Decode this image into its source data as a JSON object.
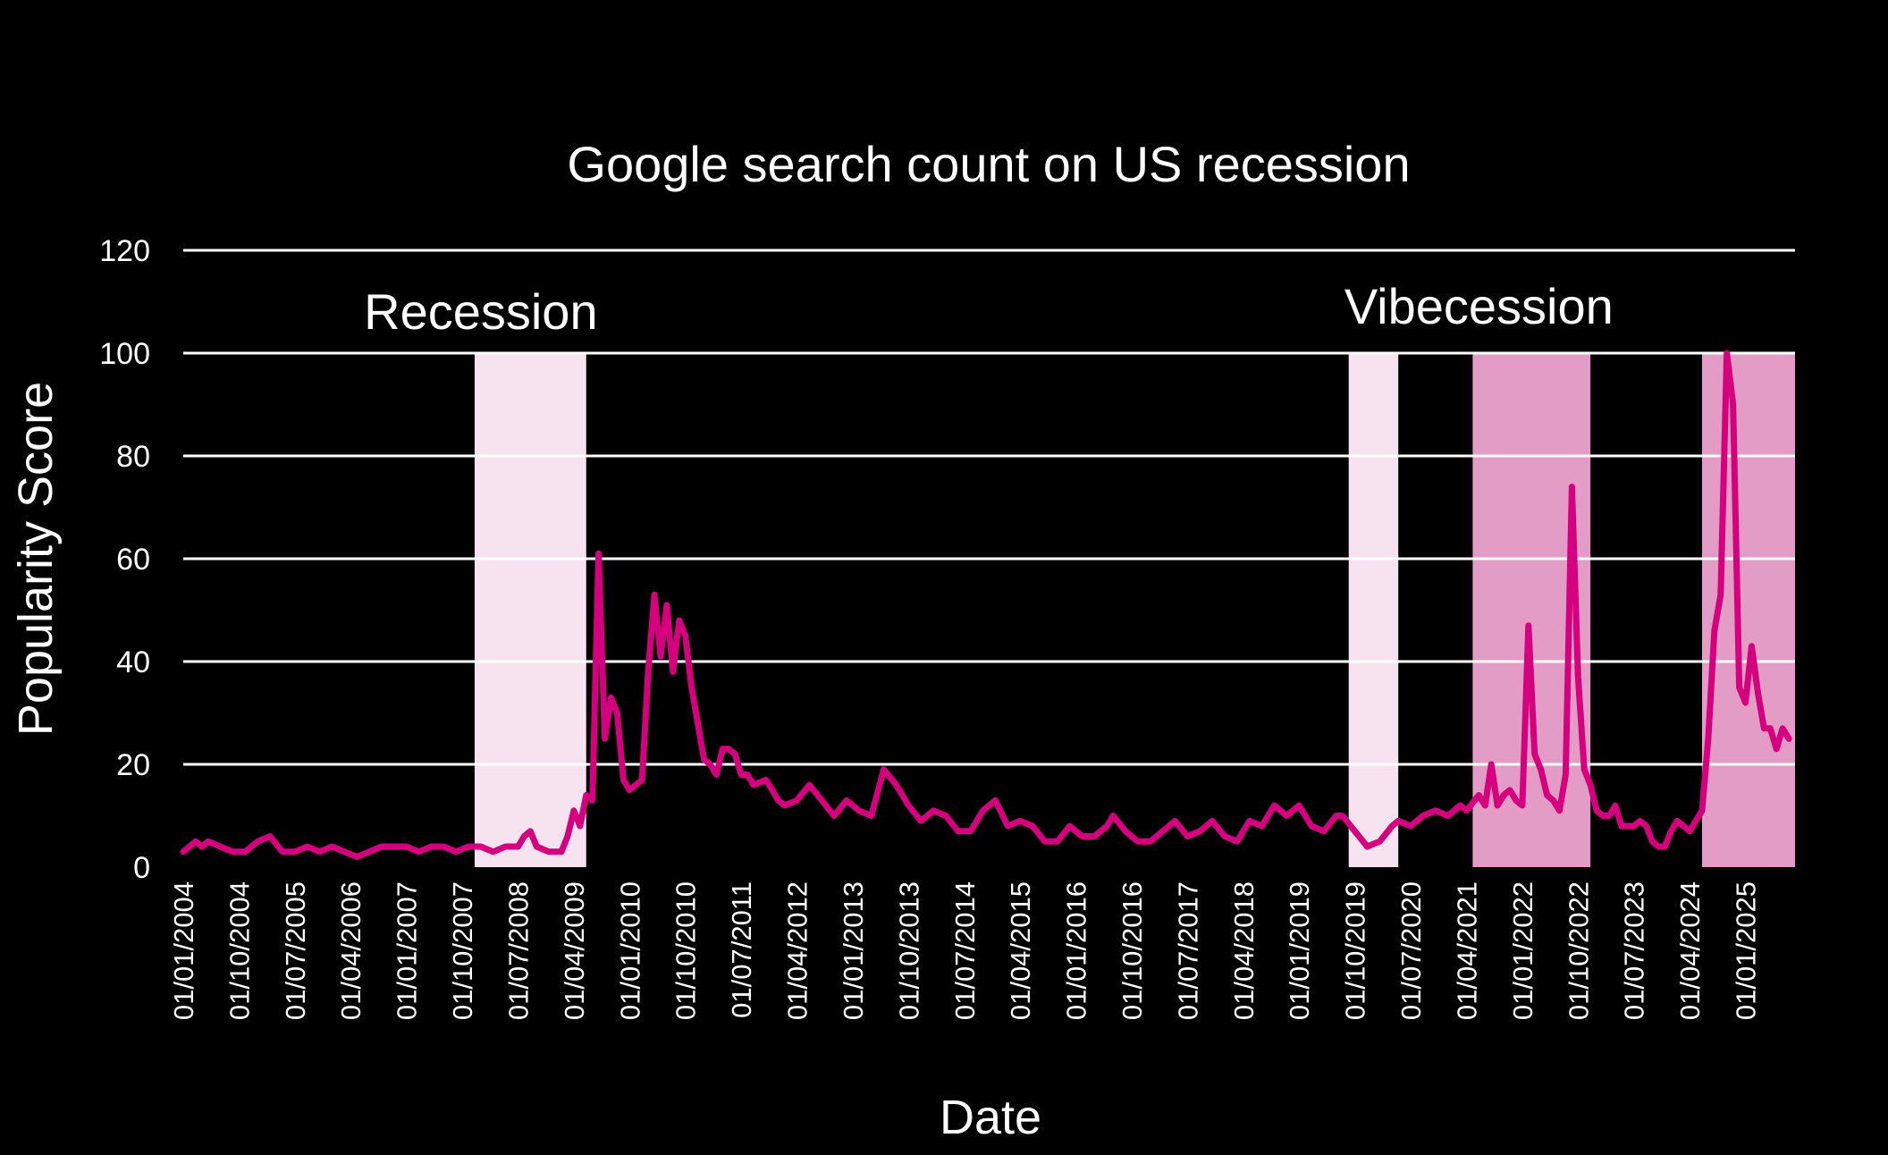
{
  "chart_data": {
    "type": "line",
    "title": "Google search count on US recession",
    "xlabel": "Date",
    "ylabel": "Popularity Score",
    "ylim": [
      0,
      120
    ],
    "yticks": [
      "0",
      "20",
      "40",
      "60",
      "80",
      "100",
      "120"
    ],
    "xrange": [
      "2004-01",
      "2025-09"
    ],
    "xtick_labels": [
      "01/01/2004",
      "01/10/2004",
      "01/07/2005",
      "01/04/2006",
      "01/01/2007",
      "01/10/2007",
      "01/07/2008",
      "01/04/2009",
      "01/01/2010",
      "01/10/2010",
      "01/07/2011",
      "01/04/2012",
      "01/01/2013",
      "01/10/2013",
      "01/07/2014",
      "01/04/2015",
      "01/01/2016",
      "01/10/2016",
      "01/07/2017",
      "01/04/2018",
      "01/01/2019",
      "01/10/2019",
      "01/07/2020",
      "01/04/2021",
      "01/01/2022",
      "01/10/2022",
      "01/07/2023",
      "01/04/2024",
      "01/01/2025"
    ],
    "grid": true,
    "colors": {
      "line": "#d4007d",
      "band_light": "#f6e3ef",
      "band_dark": "#e29cc6",
      "background": "#000000",
      "text": "#ffffff"
    },
    "annotations": [
      {
        "text": "Recession",
        "x": "2008-01"
      },
      {
        "text": "Vibecession",
        "x": "2021-06"
      }
    ],
    "bands": [
      {
        "start": "2007-12",
        "end": "2009-06",
        "style": "light"
      },
      {
        "start": "2019-09",
        "end": "2020-05",
        "style": "light"
      },
      {
        "start": "2021-05",
        "end": "2022-12",
        "style": "dark"
      },
      {
        "start": "2024-06",
        "end": "2025-09",
        "style": "dark"
      }
    ],
    "series": [
      {
        "points": [
          [
            "2004-01",
            3
          ],
          [
            "2004-03",
            5
          ],
          [
            "2004-04",
            4
          ],
          [
            "2004-05",
            5
          ],
          [
            "2004-07",
            4
          ],
          [
            "2004-09",
            3
          ],
          [
            "2004-11",
            3
          ],
          [
            "2005-01",
            5
          ],
          [
            "2005-03",
            6
          ],
          [
            "2005-05",
            3
          ],
          [
            "2005-07",
            3
          ],
          [
            "2005-09",
            4
          ],
          [
            "2005-11",
            3
          ],
          [
            "2006-01",
            4
          ],
          [
            "2006-03",
            3
          ],
          [
            "2006-05",
            2
          ],
          [
            "2006-07",
            3
          ],
          [
            "2006-09",
            4
          ],
          [
            "2006-11",
            4
          ],
          [
            "2007-01",
            4
          ],
          [
            "2007-03",
            3
          ],
          [
            "2007-05",
            4
          ],
          [
            "2007-07",
            4
          ],
          [
            "2007-09",
            3
          ],
          [
            "2007-11",
            4
          ],
          [
            "2008-01",
            4
          ],
          [
            "2008-03",
            3
          ],
          [
            "2008-05",
            4
          ],
          [
            "2008-07",
            4
          ],
          [
            "2008-08",
            6
          ],
          [
            "2008-09",
            7
          ],
          [
            "2008-10",
            4
          ],
          [
            "2008-12",
            3
          ],
          [
            "2009-02",
            3
          ],
          [
            "2009-03",
            6
          ],
          [
            "2009-04",
            11
          ],
          [
            "2009-05",
            8
          ],
          [
            "2009-06",
            14
          ],
          [
            "2009-07",
            13
          ],
          [
            "2009-08",
            61
          ],
          [
            "2009-09",
            25
          ],
          [
            "2009-10",
            33
          ],
          [
            "2009-11",
            30
          ],
          [
            "2009-12",
            17
          ],
          [
            "2010-01",
            15
          ],
          [
            "2010-03",
            17
          ],
          [
            "2010-04",
            38
          ],
          [
            "2010-05",
            53
          ],
          [
            "2010-06",
            41
          ],
          [
            "2010-07",
            51
          ],
          [
            "2010-08",
            38
          ],
          [
            "2010-09",
            48
          ],
          [
            "2010-10",
            45
          ],
          [
            "2010-11",
            35
          ],
          [
            "2010-12",
            28
          ],
          [
            "2011-01",
            21
          ],
          [
            "2011-02",
            20
          ],
          [
            "2011-03",
            18
          ],
          [
            "2011-04",
            23
          ],
          [
            "2011-05",
            23
          ],
          [
            "2011-06",
            22
          ],
          [
            "2011-07",
            18
          ],
          [
            "2011-08",
            18
          ],
          [
            "2011-09",
            16
          ],
          [
            "2011-11",
            17
          ],
          [
            "2012-01",
            13
          ],
          [
            "2012-02",
            12
          ],
          [
            "2012-04",
            13
          ],
          [
            "2012-06",
            16
          ],
          [
            "2012-08",
            13
          ],
          [
            "2012-10",
            10
          ],
          [
            "2012-12",
            13
          ],
          [
            "2013-02",
            11
          ],
          [
            "2013-04",
            10
          ],
          [
            "2013-06",
            19
          ],
          [
            "2013-08",
            16
          ],
          [
            "2013-10",
            12
          ],
          [
            "2013-12",
            9
          ],
          [
            "2014-02",
            11
          ],
          [
            "2014-04",
            10
          ],
          [
            "2014-06",
            7
          ],
          [
            "2014-08",
            7
          ],
          [
            "2014-10",
            11
          ],
          [
            "2014-12",
            13
          ],
          [
            "2015-02",
            8
          ],
          [
            "2015-04",
            9
          ],
          [
            "2015-06",
            8
          ],
          [
            "2015-08",
            5
          ],
          [
            "2015-10",
            5
          ],
          [
            "2015-12",
            8
          ],
          [
            "2016-02",
            6
          ],
          [
            "2016-04",
            6
          ],
          [
            "2016-06",
            8
          ],
          [
            "2016-07",
            10
          ],
          [
            "2016-09",
            7
          ],
          [
            "2016-11",
            5
          ],
          [
            "2017-01",
            5
          ],
          [
            "2017-03",
            7
          ],
          [
            "2017-05",
            9
          ],
          [
            "2017-07",
            6
          ],
          [
            "2017-09",
            7
          ],
          [
            "2017-11",
            9
          ],
          [
            "2018-01",
            6
          ],
          [
            "2018-03",
            5
          ],
          [
            "2018-05",
            9
          ],
          [
            "2018-07",
            8
          ],
          [
            "2018-09",
            12
          ],
          [
            "2018-11",
            10
          ],
          [
            "2019-01",
            12
          ],
          [
            "2019-03",
            8
          ],
          [
            "2019-05",
            7
          ],
          [
            "2019-07",
            10
          ],
          [
            "2019-08",
            10
          ],
          [
            "2019-10",
            7
          ],
          [
            "2019-12",
            4
          ],
          [
            "2020-02",
            5
          ],
          [
            "2020-04",
            8
          ],
          [
            "2020-05",
            9
          ],
          [
            "2020-07",
            8
          ],
          [
            "2020-09",
            10
          ],
          [
            "2020-11",
            11
          ],
          [
            "2021-01",
            10
          ],
          [
            "2021-03",
            12
          ],
          [
            "2021-04",
            11
          ],
          [
            "2021-06",
            14
          ],
          [
            "2021-07",
            12
          ],
          [
            "2021-08",
            20
          ],
          [
            "2021-09",
            12
          ],
          [
            "2021-10",
            14
          ],
          [
            "2021-11",
            15
          ],
          [
            "2021-12",
            13
          ],
          [
            "2022-01",
            12
          ],
          [
            "2022-02",
            47
          ],
          [
            "2022-03",
            22
          ],
          [
            "2022-04",
            19
          ],
          [
            "2022-05",
            14
          ],
          [
            "2022-06",
            13
          ],
          [
            "2022-07",
            11
          ],
          [
            "2022-08",
            18
          ],
          [
            "2022-09",
            74
          ],
          [
            "2022-10",
            37
          ],
          [
            "2022-11",
            19
          ],
          [
            "2022-12",
            16
          ],
          [
            "2023-01",
            11
          ],
          [
            "2023-02",
            10
          ],
          [
            "2023-03",
            10
          ],
          [
            "2023-04",
            12
          ],
          [
            "2023-05",
            8
          ],
          [
            "2023-07",
            8
          ],
          [
            "2023-08",
            9
          ],
          [
            "2023-09",
            8
          ],
          [
            "2023-10",
            5
          ],
          [
            "2023-11",
            4
          ],
          [
            "2023-12",
            4
          ],
          [
            "2024-01",
            7
          ],
          [
            "2024-02",
            9
          ],
          [
            "2024-03",
            8
          ],
          [
            "2024-04",
            7
          ],
          [
            "2024-05",
            9
          ],
          [
            "2024-06",
            11
          ],
          [
            "2024-07",
            25
          ],
          [
            "2024-08",
            46
          ],
          [
            "2024-09",
            53
          ],
          [
            "2024-10",
            100
          ],
          [
            "2024-11",
            90
          ],
          [
            "2024-12",
            35
          ],
          [
            "2025-01",
            32
          ],
          [
            "2025-02",
            43
          ],
          [
            "2025-03",
            34
          ],
          [
            "2025-04",
            27
          ],
          [
            "2025-05",
            27
          ],
          [
            "2025-06",
            23
          ],
          [
            "2025-07",
            27
          ],
          [
            "2025-08",
            25
          ]
        ]
      }
    ]
  }
}
